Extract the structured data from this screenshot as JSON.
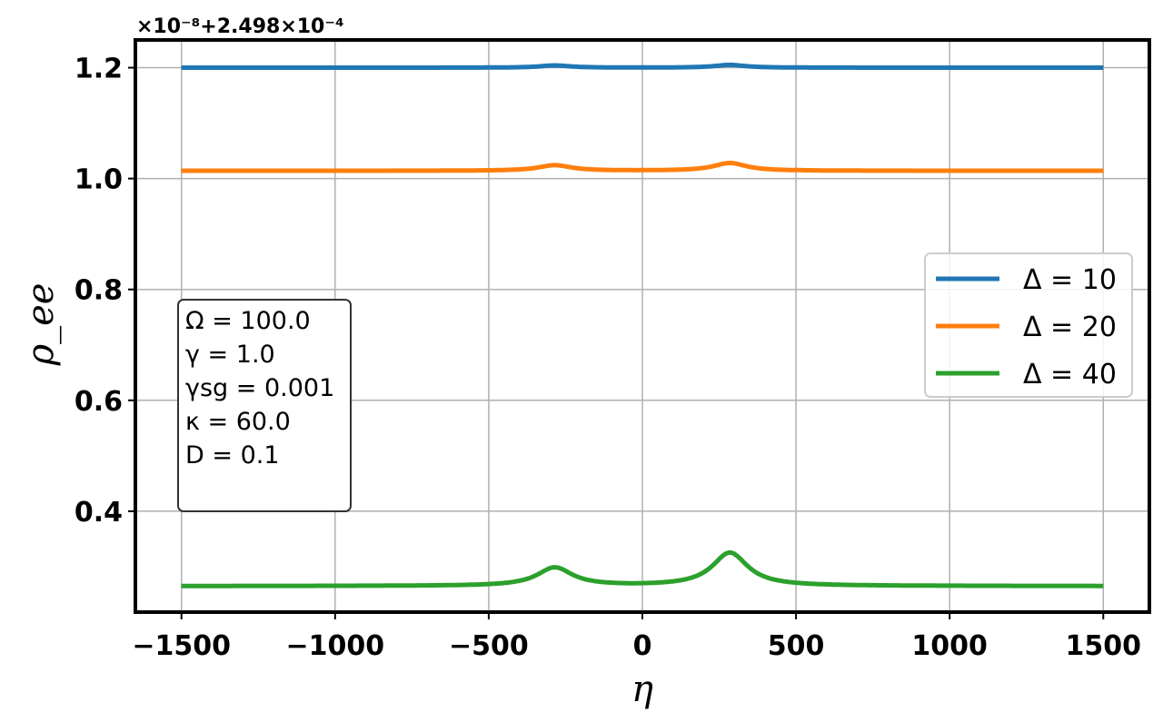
{
  "chart_data": {
    "type": "line",
    "xlabel": "η",
    "ylabel": "ρ_ee",
    "y_offset_text": "×10⁻⁸+2.498×10⁻⁴",
    "xlim": [
      -1650,
      1650
    ],
    "ylim": [
      0.218,
      1.25
    ],
    "xticks": [
      -1500,
      -1000,
      -500,
      0,
      500,
      1000,
      1500
    ],
    "xtick_labels": [
      "−1500",
      "−1000",
      "−500",
      "0",
      "500",
      "1000",
      "1500"
    ],
    "yticks": [
      0.4,
      0.6,
      0.8,
      1.0,
      1.2
    ],
    "ytick_labels": [
      "0.4",
      "0.6",
      "0.8",
      "1.0",
      "1.2"
    ],
    "grid": true,
    "legend_placement": "center-right",
    "series": [
      {
        "name": "Δ = 10",
        "color": "#1f77b4",
        "base": 1.2,
        "peaks": [
          {
            "center": -285,
            "width": 60,
            "height": 0.004
          },
          {
            "center": 285,
            "width": 60,
            "height": 0.005
          }
        ]
      },
      {
        "name": "Δ = 20",
        "color": "#ff7f0e",
        "base": 1.014,
        "peaks": [
          {
            "center": -285,
            "width": 65,
            "height": 0.01
          },
          {
            "center": 285,
            "width": 65,
            "height": 0.014
          }
        ]
      },
      {
        "name": "Δ = 40",
        "color": "#2ca02c",
        "base": 0.265,
        "peaks": [
          {
            "center": -285,
            "width": 70,
            "height": 0.033
          },
          {
            "center": 285,
            "width": 70,
            "height": 0.06
          }
        ]
      }
    ],
    "annotation_lines": [
      "Ω = 100.0",
      "γ = 1.0",
      "γsg = 0.001",
      "κ = 60.0",
      "D = 0.1"
    ]
  }
}
